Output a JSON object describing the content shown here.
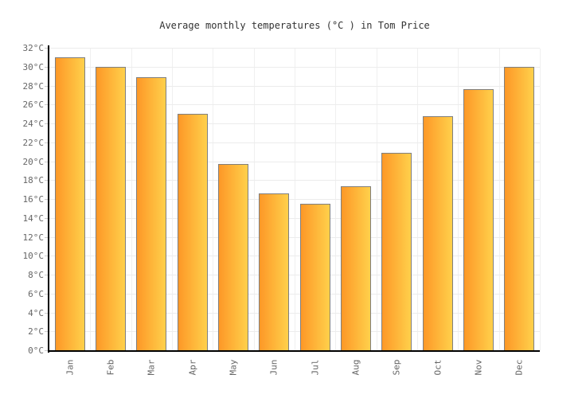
{
  "title": "Average monthly temperatures (°C ) in Tom Price",
  "chart_data": {
    "type": "bar",
    "title": "Average monthly temperatures (°C ) in Tom Price",
    "categories": [
      "Jan",
      "Feb",
      "Mar",
      "Apr",
      "May",
      "Jun",
      "Jul",
      "Aug",
      "Sep",
      "Oct",
      "Nov",
      "Dec"
    ],
    "values": [
      31.1,
      30.1,
      29.0,
      25.1,
      19.8,
      16.7,
      15.6,
      17.4,
      21.0,
      24.8,
      27.7,
      30.1
    ],
    "unit": "°C",
    "xlabel": "",
    "ylabel": "",
    "ylim": [
      0,
      32
    ],
    "ytick_step": 2,
    "yticks": [
      0,
      2,
      4,
      6,
      8,
      10,
      12,
      14,
      16,
      18,
      20,
      22,
      24,
      26,
      28,
      30,
      32
    ],
    "ytick_labels": [
      "0°C",
      "2°C",
      "4°C",
      "6°C",
      "8°C",
      "10°C",
      "12°C",
      "14°C",
      "16°C",
      "18°C",
      "20°C",
      "22°C",
      "24°C",
      "26°C",
      "28°C",
      "30°C",
      "32°C"
    ],
    "grid": true,
    "legend": false,
    "x_label_rotation": -90,
    "colors": {
      "bar_gradient_left": "#fd9827",
      "bar_gradient_right": "#ffd04b",
      "bar_border": "#7f7f7f",
      "h_gridline": "#ececec",
      "v_gridline": "#f0f0f0",
      "axis_line": "#000000",
      "tick_mark": "#cccccc",
      "axis_label_text": "#666666",
      "title_text": "#333333",
      "background": "#ffffff"
    }
  }
}
